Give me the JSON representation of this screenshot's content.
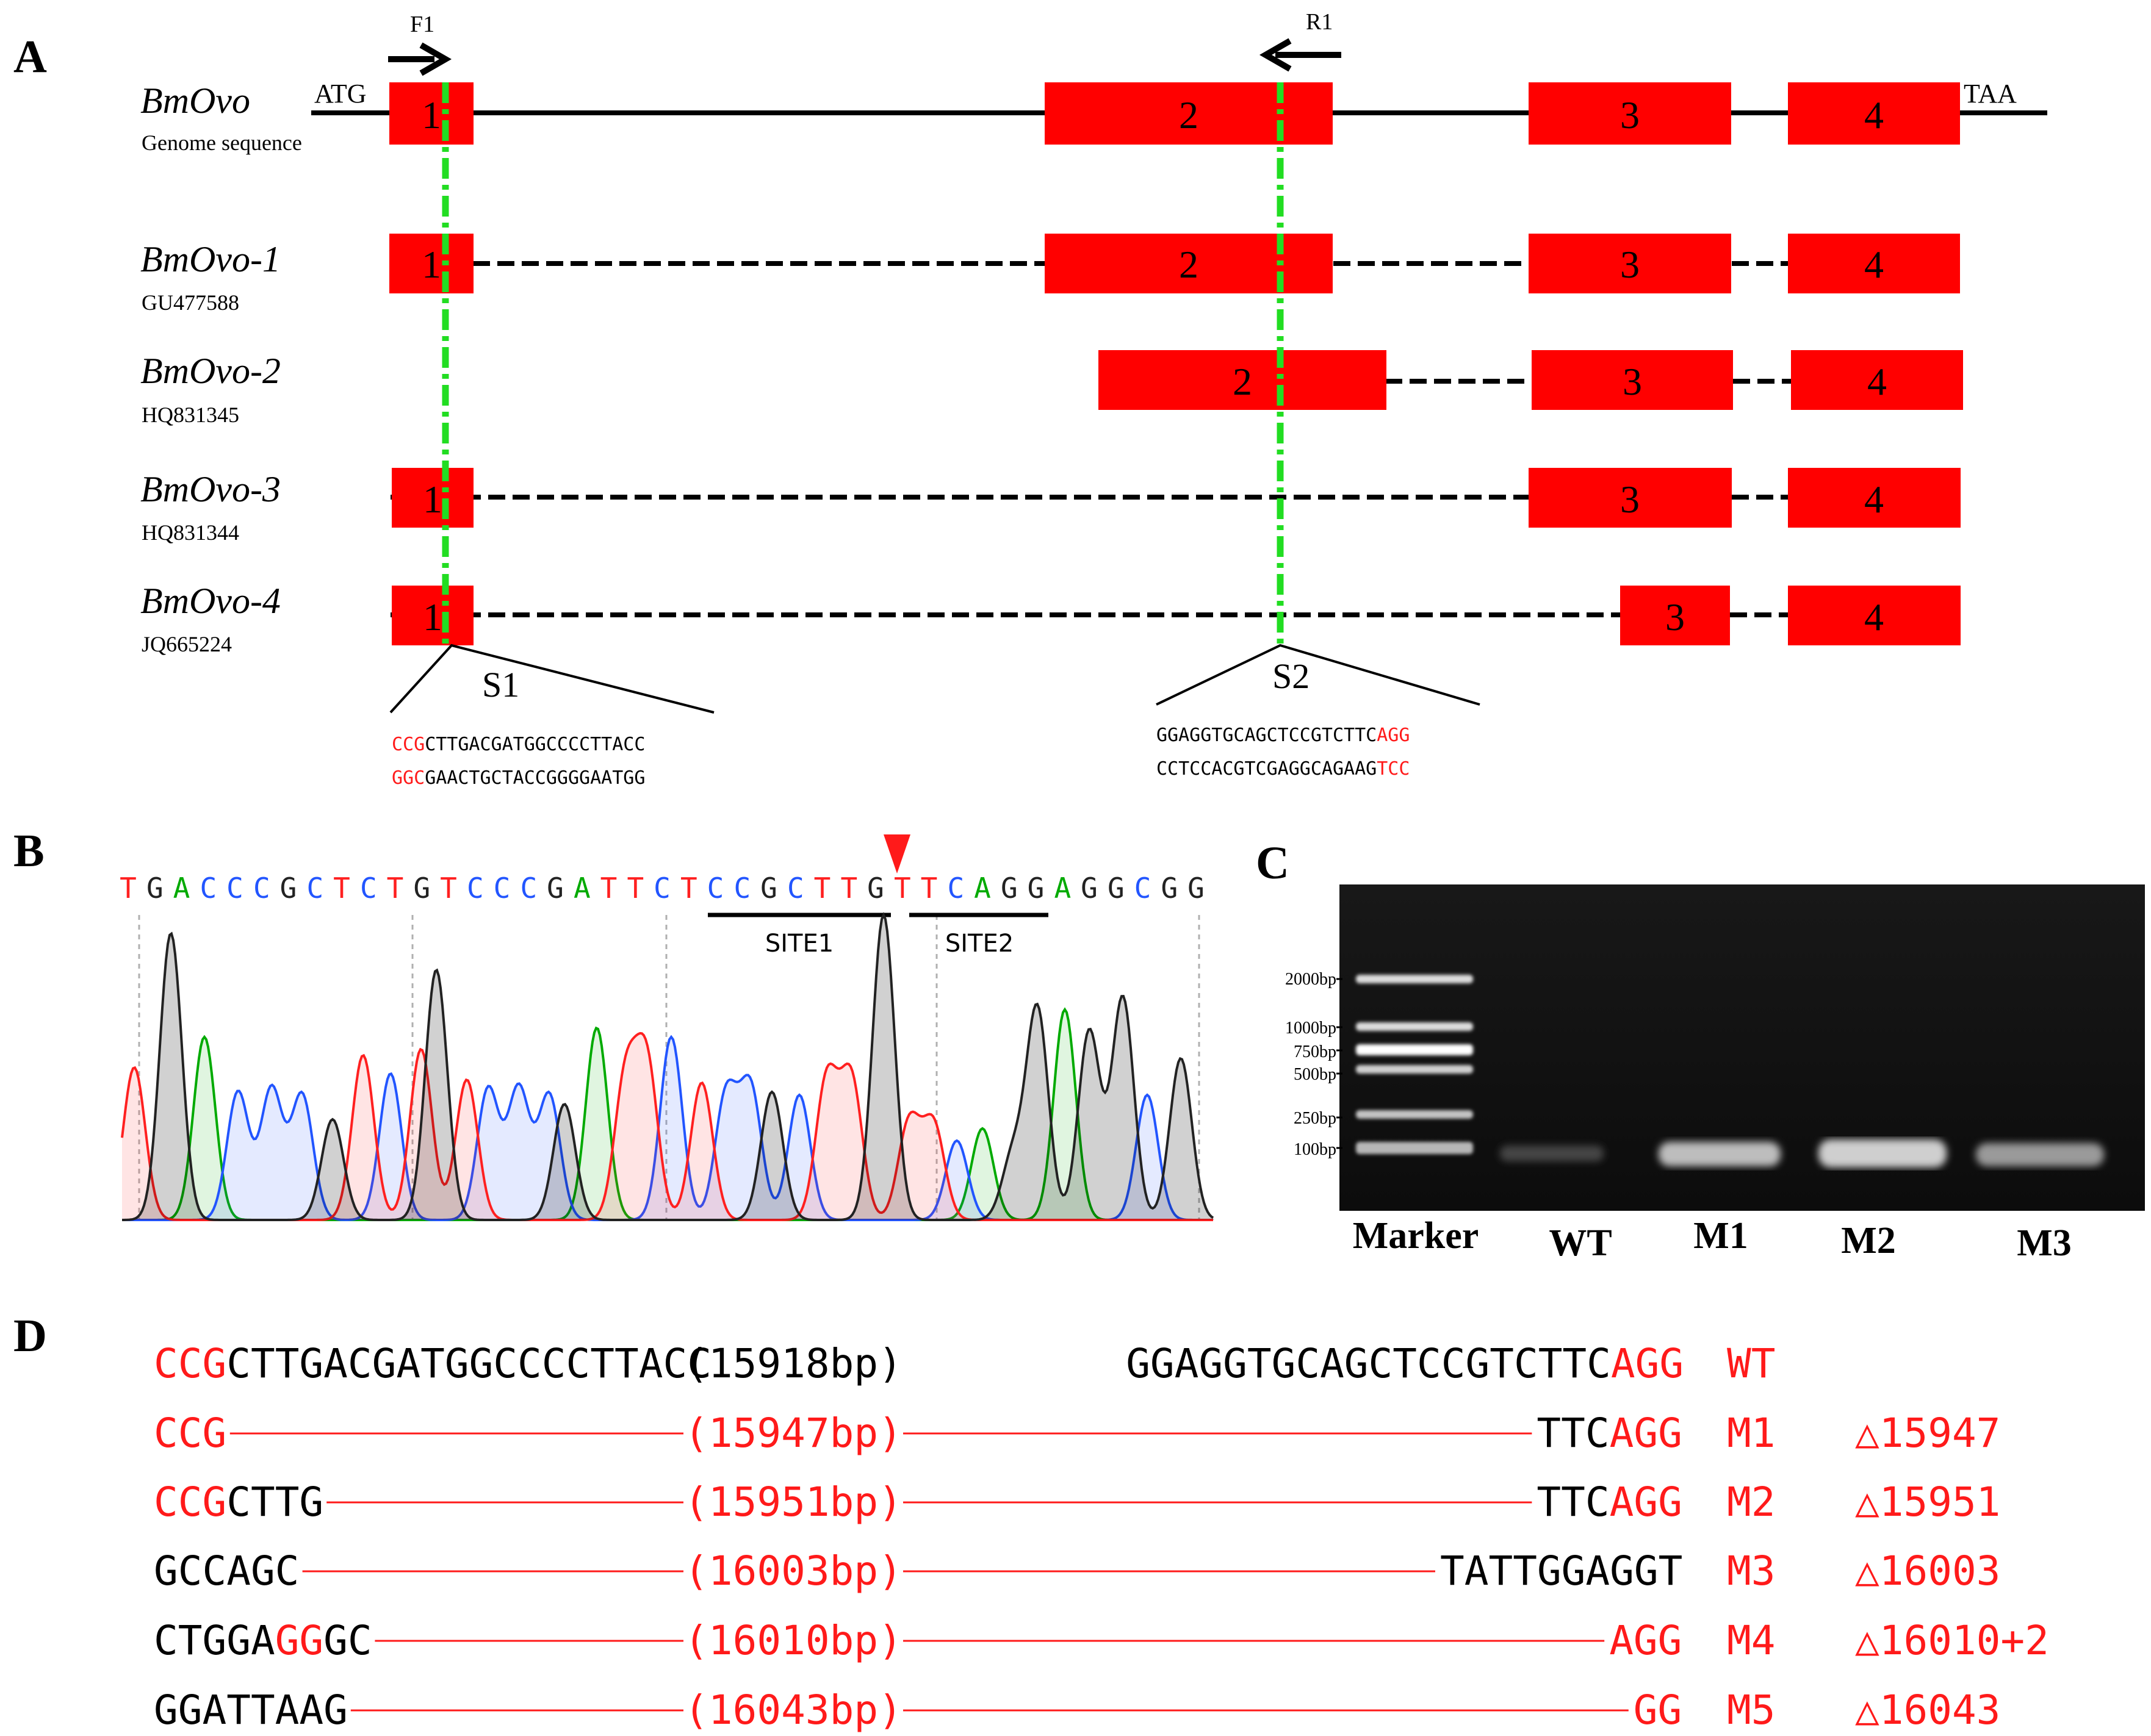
{
  "panelA": {
    "label": "A",
    "primers": {
      "forward": "F1",
      "reverse": "R1"
    },
    "start_codon": "ATG",
    "stop_codon": "TAA",
    "tracks": [
      {
        "name": "BmOvo",
        "sub": "Genome sequence",
        "exons": [
          "1",
          "2",
          "3",
          "4"
        ]
      },
      {
        "name": "BmOvo-1",
        "sub": "GU477588",
        "exons": [
          "1",
          "2",
          "3",
          "4"
        ]
      },
      {
        "name": "BmOvo-2",
        "sub": "HQ831345",
        "exons": [
          "2",
          "3",
          "4"
        ]
      },
      {
        "name": "BmOvo-3",
        "sub": "HQ831344",
        "exons": [
          "1",
          "3",
          "4"
        ]
      },
      {
        "name": "BmOvo-4",
        "sub": "JQ665224",
        "exons": [
          "1",
          "3",
          "4"
        ]
      }
    ],
    "sites": [
      {
        "label": "S1",
        "pam": "CCG",
        "top": "CTTGACGATGGCCCCTTACC",
        "bottom_pam": "GGC",
        "bottom": "GAACTGCTACCGGGGAATGG"
      },
      {
        "label": "S2",
        "top": "GGAGGTGCAGCTCCGTCTTC",
        "pam": "AGG",
        "bottom": "CCTCCACGTCGAGGCAGAAG",
        "bottom_pam": "TCC"
      }
    ]
  },
  "panelB": {
    "label": "B",
    "sequence": [
      "T",
      "G",
      "A",
      "C",
      "C",
      "C",
      "G",
      "C",
      "T",
      "C",
      "T",
      "G",
      "T",
      "C",
      "C",
      "C",
      "G",
      "A",
      "T",
      "T",
      "C",
      "T",
      "C",
      "C",
      "G",
      "C",
      "T",
      "T",
      "G",
      "T",
      "T",
      "C",
      "A",
      "G",
      "G",
      "A",
      "G",
      "G",
      "C",
      "G",
      "G"
    ],
    "site1": "SITE1",
    "site2": "SITE2"
  },
  "panelC": {
    "label": "C",
    "ladder": [
      "2000bp",
      "1000bp",
      "750bp",
      "500bp",
      "250bp",
      "100bp"
    ],
    "lanes": [
      "Marker",
      "WT",
      "M1",
      "M2",
      "M3"
    ]
  },
  "panelD": {
    "label": "D",
    "rows": [
      {
        "segs": [
          {
            "t": "CCG",
            "c": "r"
          },
          {
            "t": "CTTGACGATGGCCCCTTACC",
            "c": "k"
          }
        ],
        "mid": "(15918bp)",
        "midc": "k",
        "right": [
          {
            "t": "GGAGGTGCAGCTCCGTCTTC",
            "c": "k"
          },
          {
            "t": "AGG",
            "c": "r"
          }
        ],
        "id": "WT",
        "del": ""
      },
      {
        "segs": [
          {
            "t": "CCG",
            "c": "r"
          }
        ],
        "mid": "(15947bp)",
        "midc": "r",
        "right": [
          {
            "t": "TTC",
            "c": "k"
          },
          {
            "t": "AGG",
            "c": "r"
          }
        ],
        "id": "M1",
        "del": "△15947"
      },
      {
        "segs": [
          {
            "t": "CCG",
            "c": "r"
          },
          {
            "t": "CTTG",
            "c": "k"
          }
        ],
        "mid": "(15951bp)",
        "midc": "r",
        "right": [
          {
            "t": "TTC",
            "c": "k"
          },
          {
            "t": "AGG",
            "c": "r"
          }
        ],
        "id": "M2",
        "del": "△15951"
      },
      {
        "segs": [
          {
            "t": "GCCAGC",
            "c": "k"
          }
        ],
        "mid": "(16003bp)",
        "midc": "r",
        "right": [
          {
            "t": "TATTGGAGGT",
            "c": "k"
          }
        ],
        "id": "M3",
        "del": "△16003"
      },
      {
        "segs": [
          {
            "t": "CTGGA",
            "c": "k"
          },
          {
            "t": "GG",
            "c": "r"
          },
          {
            "t": "GC",
            "c": "k"
          }
        ],
        "mid": "(16010bp)",
        "midc": "r",
        "right": [
          {
            "t": "AGG",
            "c": "r"
          }
        ],
        "id": "M4",
        "del": "△16010+2"
      },
      {
        "segs": [
          {
            "t": "GGATTAAG",
            "c": "k"
          }
        ],
        "mid": "(16043bp)",
        "midc": "r",
        "right": [
          {
            "t": "GG",
            "c": "r"
          }
        ],
        "id": "M5",
        "del": "△16043"
      }
    ]
  },
  "colors": {
    "exon": "#ff0000",
    "site_line": "#22dd22",
    "red_text": "#ff1a1a",
    "base_A": "#00aa00",
    "base_C": "#2255ff",
    "base_G": "#222222",
    "base_T": "#ff2020",
    "gel_bg": "#111111"
  }
}
